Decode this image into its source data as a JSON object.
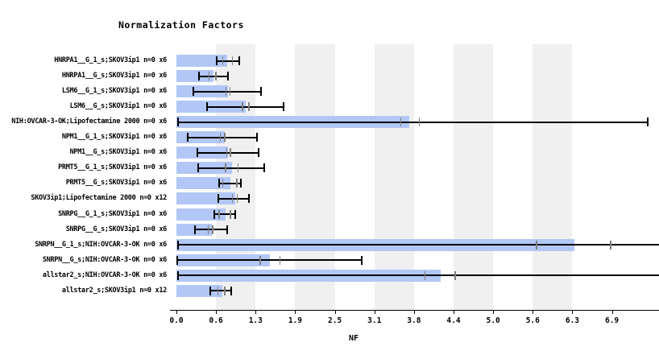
{
  "title": "Normalization Factors",
  "x_axis_label": "NF",
  "colors": {
    "bar_fill": "#b2c7f5",
    "band_fill": "#f0f0f0",
    "error_bar": "#000000",
    "replicate_mark": "#808080",
    "text": "#000000"
  },
  "chart_data": {
    "type": "bar",
    "orientation": "horizontal",
    "title": "Normalization Factors",
    "xlabel": "NF",
    "xlim": [
      0,
      6.875
    ],
    "x_tick_step": 0.625,
    "x_tick_labels": [
      "0.0",
      "0.6",
      "1.3",
      "1.9",
      "2.5",
      "3.1",
      "3.8",
      "4.4",
      "5.0",
      "5.6",
      "6.3",
      "6.9"
    ],
    "grid": "alternating-vertical-bands",
    "legend": "none",
    "categories": [
      "HNRPA1__G_1_s;SKOV3ip1 n=0 x6",
      "HNRPA1__G_s;SKOV3ip1 n=0 x6",
      "LSM6__G_1_s;SKOV3ip1 n=0 x6",
      "LSM6__G_s;SKOV3ip1 n=0 x6",
      "NIH:OVCAR-3-OK;Lipofectamine 2000 n=0 x6",
      "NPM1__G_1_s;SKOV3ip1 n=0 x6",
      "NPM1__G_s;SKOV3ip1 n=0 x6",
      "PRMT5__G_1_s;SKOV3ip1 n=0 x6",
      "PRMT5__G_s;SKOV3ip1 n=0 x6",
      "SKOV3ip1;Lipofectamine 2000 n=0 x12",
      "SNRPG__G_1_s;SKOV3ip1 n=0 x6",
      "SNRPG__G_s;SKOV3ip1 n=0 x6",
      "SNRPN__G_1_s;NIH:OVCAR-3-OK n=0 x6",
      "SNRPN__G_s;NIH:OVCAR-3-OK n=0 x6",
      "allstar2_s;NIH:OVCAR-3-OK n=0 x6",
      "allstar2_s;SKOV3ip1 n=0 x12"
    ],
    "values": [
      0.8,
      0.58,
      0.82,
      1.09,
      3.68,
      0.76,
      0.81,
      0.88,
      0.85,
      0.93,
      0.78,
      0.56,
      6.28,
      1.47,
      4.17,
      0.72
    ],
    "error_low": [
      0.63,
      0.35,
      0.27,
      0.48,
      0.02,
      0.18,
      0.33,
      0.34,
      0.67,
      0.66,
      0.6,
      0.29,
      0.02,
      0.01,
      0.02,
      0.53
    ],
    "error_high": [
      0.99,
      0.82,
      1.33,
      1.69,
      7.44,
      1.27,
      1.3,
      1.38,
      1.02,
      1.15,
      0.93,
      0.8,
      7.7,
      2.92,
      7.7,
      0.87
    ],
    "error_high_clipped": [
      false,
      false,
      false,
      false,
      false,
      false,
      false,
      false,
      false,
      false,
      false,
      false,
      true,
      false,
      true,
      false
    ],
    "replicate_marks": [
      [
        0.73,
        0.88
      ],
      [
        0.51,
        0.62
      ],
      [
        0.78,
        0.84
      ],
      [
        1.04,
        1.14
      ],
      [
        3.54,
        3.83
      ],
      [
        0.69,
        0.76
      ],
      [
        0.79,
        0.85
      ],
      [
        0.77,
        0.97
      ],
      [
        0.73,
        0.95
      ],
      [
        0.88,
        0.96
      ],
      [
        0.67,
        0.85
      ],
      [
        0.5,
        0.57
      ],
      [
        5.68,
        6.85
      ],
      [
        1.32,
        1.63
      ],
      [
        3.92,
        4.4
      ],
      [
        0.65,
        0.76
      ]
    ]
  }
}
